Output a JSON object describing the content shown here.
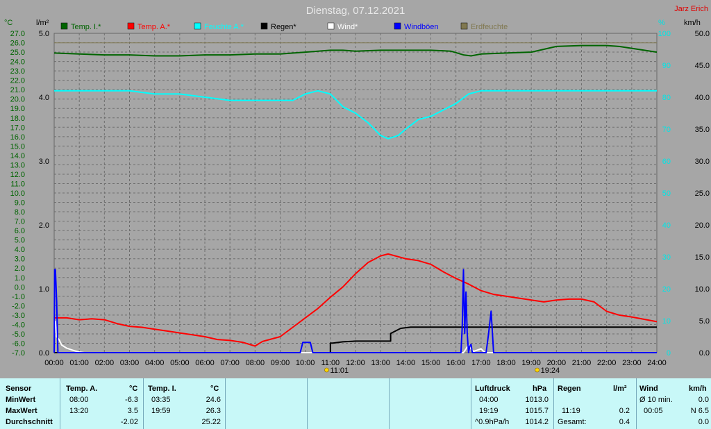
{
  "chart_data": {
    "type": "line",
    "title": "Dienstag, 07.12.2021",
    "author": "Jarz Erich",
    "xlabel": "",
    "ylabel_left_temp": "°C",
    "ylabel_left_rain": "l/m²",
    "ylabel_right_pct": "%",
    "ylabel_right_wind": "km/h",
    "x_ticks": [
      "00:00",
      "01:00",
      "02:00",
      "03:00",
      "04:00",
      "05:00",
      "06:00",
      "07:00",
      "08:00",
      "09:00",
      "10:00",
      "11:00",
      "12:00",
      "13:00",
      "14:00",
      "15:00",
      "16:00",
      "17:00",
      "18:00",
      "19:00",
      "20:00",
      "21:00",
      "22:00",
      "23:00",
      "24:00"
    ],
    "temp_axis": {
      "min": -7.0,
      "max": 27.0,
      "step": 1.0
    },
    "rain_axis": {
      "min": 0.0,
      "max": 5.0,
      "ticks": [
        "0.0",
        "1.0",
        "2.0",
        "3.0",
        "4.0",
        "5.0"
      ]
    },
    "pct_axis": {
      "min": 0,
      "max": 100,
      "ticks": [
        "0",
        "10",
        "20",
        "30",
        "40",
        "50",
        "60",
        "70",
        "80",
        "90",
        "100"
      ]
    },
    "wind_axis": {
      "min": 0.0,
      "max": 50.0,
      "ticks": [
        "0.0",
        "5.0",
        "10.0",
        "15.0",
        "20.0",
        "25.0",
        "30.0",
        "35.0",
        "40.0",
        "45.0",
        "50.0"
      ]
    },
    "grid": true,
    "legend_position": "top",
    "markers": [
      {
        "time": 11.0167,
        "label": "11:01"
      },
      {
        "time": 19.4,
        "label": "19:24"
      }
    ],
    "series": [
      {
        "name": "Temp. I.*",
        "color": "#006400",
        "axis": "temp",
        "x": [
          0,
          1,
          2,
          3,
          4,
          5,
          6,
          7,
          8,
          9,
          10,
          10.5,
          11,
          11.5,
          12,
          13,
          14,
          15,
          15.8,
          16.3,
          16.6,
          17,
          18,
          19,
          19.5,
          20,
          21,
          22,
          22.5,
          23,
          24
        ],
        "y": [
          24.9,
          24.8,
          24.7,
          24.7,
          24.6,
          24.6,
          24.7,
          24.7,
          24.8,
          24.8,
          25.0,
          25.1,
          25.2,
          25.2,
          25.1,
          25.2,
          25.2,
          25.2,
          25.1,
          24.7,
          24.6,
          24.8,
          24.9,
          25.0,
          25.3,
          25.6,
          25.7,
          25.7,
          25.6,
          25.4,
          25.0
        ]
      },
      {
        "name": "Temp. A.*",
        "color": "#ff0000",
        "axis": "temp",
        "x": [
          0,
          0.5,
          1,
          1.5,
          2,
          2.5,
          3,
          3.5,
          4,
          4.5,
          5,
          5.5,
          6,
          6.5,
          7,
          7.5,
          8,
          8.3,
          9,
          9.5,
          10,
          10.5,
          11,
          11.5,
          12,
          12.5,
          13,
          13.3,
          14,
          14.5,
          15,
          15.5,
          16,
          16.5,
          17,
          17.5,
          18,
          18.5,
          19,
          19.5,
          20,
          20.5,
          21,
          21.5,
          22,
          22.5,
          23,
          24
        ],
        "y": [
          -3.3,
          -3.3,
          -3.5,
          -3.4,
          -3.5,
          -3.9,
          -4.2,
          -4.3,
          -4.5,
          -4.7,
          -4.9,
          -5.1,
          -5.3,
          -5.6,
          -5.7,
          -5.9,
          -6.3,
          -5.8,
          -5.3,
          -4.3,
          -3.3,
          -2.3,
          -1.1,
          0.0,
          1.4,
          2.6,
          3.3,
          3.5,
          3.0,
          2.8,
          2.4,
          1.6,
          0.9,
          0.3,
          -0.4,
          -0.8,
          -1.0,
          -1.2,
          -1.4,
          -1.6,
          -1.4,
          -1.3,
          -1.3,
          -1.6,
          -2.6,
          -3.0,
          -3.2,
          -3.7
        ]
      },
      {
        "name": "Feuchte A.*",
        "color": "#00ffff",
        "axis": "pct",
        "x": [
          0,
          1,
          2,
          3,
          4,
          5,
          6,
          7,
          8,
          9,
          9.5,
          10,
          10.5,
          11,
          11.5,
          12,
          12.5,
          13,
          13.3,
          13.7,
          14,
          14.5,
          15,
          15.5,
          16,
          16.5,
          17,
          18,
          19,
          20,
          21,
          22,
          23,
          24
        ],
        "y": [
          82,
          82,
          82,
          82,
          81,
          81,
          80,
          79,
          79,
          79,
          79,
          81,
          82,
          81,
          77,
          75,
          72,
          68,
          67,
          68,
          70,
          73,
          74,
          76,
          78,
          81,
          82,
          82,
          82,
          82,
          82,
          82,
          82,
          82
        ]
      },
      {
        "name": "Regen*",
        "color": "#000000",
        "axis": "rain",
        "x": [
          0,
          11.0,
          11.0,
          11.1,
          11.1,
          11.5,
          12,
          12.5,
          13,
          13.4,
          13.4,
          13.8,
          14.2,
          15,
          16,
          17,
          18,
          19,
          20,
          21,
          22,
          23,
          24
        ],
        "y": [
          0,
          0,
          0.15,
          0.15,
          0.15,
          0.17,
          0.18,
          0.18,
          0.18,
          0.18,
          0.3,
          0.38,
          0.4,
          0.4,
          0.4,
          0.4,
          0.4,
          0.4,
          0.4,
          0.4,
          0.4,
          0.4,
          0.4
        ]
      },
      {
        "name": "Wind*",
        "color": "#ffffff",
        "axis": "wind",
        "x": [
          0,
          0.05,
          0.1,
          0.2,
          0.3,
          0.5,
          0.8,
          1,
          1.2,
          16.3,
          16.5,
          16.6,
          16.7,
          17.0,
          17.1,
          17.2,
          24
        ],
        "y": [
          4.5,
          4.9,
          2.5,
          2.0,
          1.2,
          0.7,
          0.3,
          0.1,
          0,
          0,
          1.2,
          0.6,
          0.2,
          0.6,
          0.2,
          0,
          0
        ]
      },
      {
        "name": "Windböen",
        "color": "#0000ff",
        "axis": "wind",
        "x": [
          0,
          0.02,
          0.05,
          0.1,
          0.15,
          0.2,
          9.8,
          9.9,
          10.0,
          10.1,
          10.2,
          10.3,
          16.2,
          16.25,
          16.3,
          16.35,
          16.4,
          16.45,
          16.5,
          16.55,
          16.6,
          16.65,
          16.7,
          16.8,
          16.9,
          17.0,
          17.1,
          17.2,
          17.3,
          17.4,
          17.5,
          24
        ],
        "y": [
          0,
          13.0,
          13.0,
          8.0,
          0,
          0,
          0,
          1.6,
          1.6,
          1.6,
          1.6,
          0,
          0,
          4.0,
          13.0,
          3.0,
          9.5,
          3.0,
          0,
          1.0,
          1.3,
          0,
          0,
          0,
          0,
          0,
          0,
          0,
          3.0,
          6.5,
          0,
          0
        ]
      },
      {
        "name": "Erdfeuchte",
        "color": "#807850",
        "axis": "pct",
        "x": [
          0,
          1,
          2,
          3,
          4,
          5,
          6,
          7,
          8,
          9,
          10,
          11,
          12,
          13,
          14,
          15,
          16,
          17,
          18,
          19,
          20,
          21,
          22,
          23,
          24
        ],
        "y": [
          97,
          97,
          97,
          97,
          97,
          97,
          97,
          97,
          97,
          97,
          97,
          97,
          97,
          97,
          97,
          97,
          97,
          97,
          97,
          97,
          97,
          97,
          97,
          97,
          97
        ]
      }
    ]
  },
  "stats": {
    "sensor": {
      "headers": {
        "label": "Sensor",
        "tempa": "Temp. A.",
        "tempa_unit": "°C",
        "tempi": "Temp. I.",
        "tempi_unit": "°C"
      },
      "rows": [
        {
          "label": "MinWert",
          "tempa_time": "08:00",
          "tempa_val": "-6.3",
          "tempi_time": "03:35",
          "tempi_val": "24.6"
        },
        {
          "label": "MaxWert",
          "tempa_time": "13:20",
          "tempa_val": "3.5",
          "tempi_time": "19:59",
          "tempi_val": "26.3"
        },
        {
          "label": "Durchschnitt",
          "tempa_time": "",
          "tempa_val": "-2.02",
          "tempi_time": "",
          "tempi_val": "25.22"
        }
      ]
    },
    "pressure": {
      "header": "Luftdruck",
      "unit": "hPa",
      "rows": [
        {
          "time": "04:00",
          "val": "1013.0"
        },
        {
          "time": "19:19",
          "val": "1015.7"
        },
        {
          "time": "^0.9hPa/h",
          "val": "1014.2"
        }
      ]
    },
    "rain": {
      "header": "Regen",
      "unit": "l/m²",
      "rows": [
        {
          "time": "",
          "val": ""
        },
        {
          "time": "11:19",
          "val": "0.2"
        },
        {
          "time": "Gesamt:",
          "val": "0.4"
        }
      ]
    },
    "wind": {
      "header": "Wind",
      "unit": "km/h",
      "rows": [
        {
          "time": "Ø 10 min.",
          "val": "0.0"
        },
        {
          "time": "00:05",
          "val": "N 6.5"
        },
        {
          "time": "",
          "val": "0.0"
        }
      ]
    }
  }
}
